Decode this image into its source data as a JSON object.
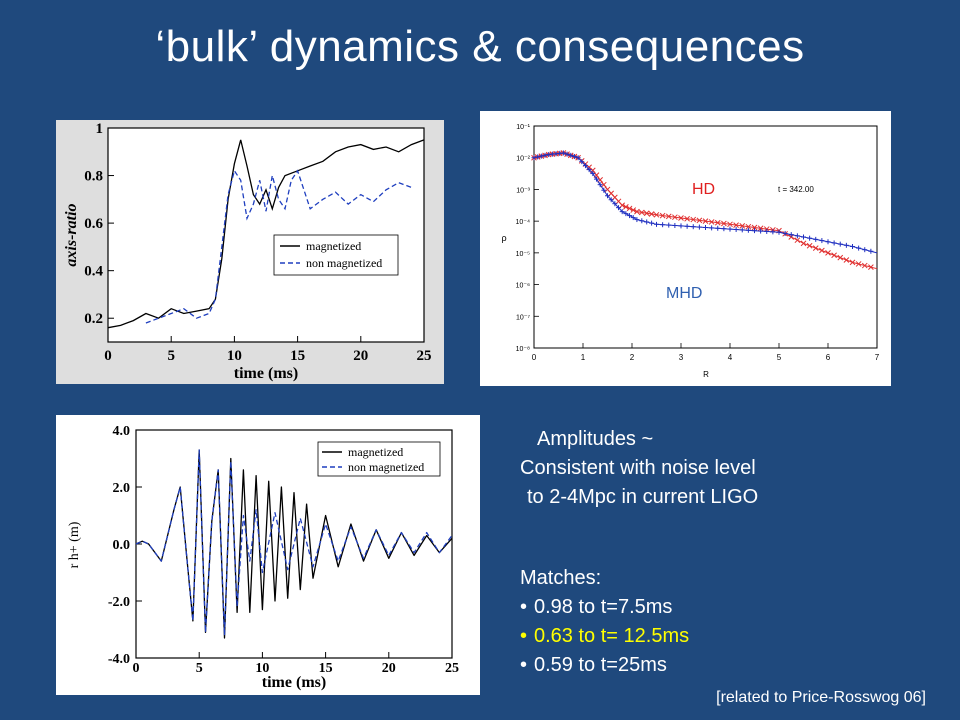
{
  "slide": {
    "title": "‘bulk’ dynamics & consequences"
  },
  "amplitudes": {
    "line1": "Amplitudes ~",
    "line2": "Consistent with noise level",
    "line3": "to  2-4Mpc in current LIGO"
  },
  "matches": {
    "heading": "Matches:",
    "items": [
      {
        "text": "0.98 to t=7.5ms",
        "highlight": false
      },
      {
        "text": "0.63 to t= 12.5ms",
        "highlight": true
      },
      {
        "text": "0.59 to t=25ms",
        "highlight": false
      }
    ]
  },
  "footer": {
    "note": "[related to Price-Rosswog 06]"
  },
  "chart_data": [
    {
      "type": "line",
      "xlabel": "time (ms)",
      "ylabel": "axis-ratio",
      "xlim": [
        0,
        25
      ],
      "ylim": [
        0.1,
        1.0
      ],
      "xticks": [
        "0",
        "5",
        "10",
        "15",
        "20",
        "25"
      ],
      "yticks": [
        "0.2",
        "0.4",
        "0.6",
        "0.8",
        "1"
      ],
      "legend_position": "lower-right",
      "series": [
        {
          "name": "magnetized",
          "style": "solid",
          "color": "#000000",
          "x": [
            0,
            1,
            2,
            3,
            4,
            5,
            6,
            7,
            8,
            8.5,
            9,
            9.5,
            10,
            10.5,
            11,
            11.5,
            12,
            12.5,
            13,
            13.5,
            14,
            15,
            16,
            17,
            18,
            19,
            20,
            21,
            22,
            23,
            24,
            25
          ],
          "y": [
            0.16,
            0.17,
            0.19,
            0.22,
            0.2,
            0.24,
            0.22,
            0.23,
            0.24,
            0.28,
            0.45,
            0.7,
            0.85,
            0.95,
            0.84,
            0.72,
            0.68,
            0.74,
            0.66,
            0.75,
            0.8,
            0.82,
            0.84,
            0.86,
            0.9,
            0.92,
            0.93,
            0.91,
            0.92,
            0.9,
            0.93,
            0.95
          ]
        },
        {
          "name": "non magnetized",
          "style": "dashed",
          "color": "#1f3fbf",
          "x": [
            3,
            4,
            5,
            6,
            7,
            8,
            8.5,
            9,
            9.5,
            10,
            10.5,
            11,
            11.5,
            12,
            12.5,
            13,
            13.5,
            14,
            14.5,
            15,
            16,
            17,
            18,
            19,
            20,
            21,
            22,
            23,
            24
          ],
          "y": [
            0.18,
            0.2,
            0.22,
            0.24,
            0.2,
            0.22,
            0.28,
            0.5,
            0.72,
            0.82,
            0.78,
            0.62,
            0.68,
            0.78,
            0.65,
            0.8,
            0.7,
            0.66,
            0.78,
            0.82,
            0.66,
            0.7,
            0.73,
            0.68,
            0.72,
            0.69,
            0.74,
            0.77,
            0.75
          ]
        }
      ]
    },
    {
      "type": "scatter",
      "xlabel": "R",
      "ylabel": "ρ",
      "xlim": [
        0,
        7
      ],
      "ylim_log10": [
        -8,
        -1
      ],
      "xticks": [
        "0",
        "1",
        "2",
        "3",
        "4",
        "5",
        "6",
        "7"
      ],
      "yticks": [
        "10⁻⁸",
        "10⁻⁷",
        "10⁻⁶",
        "10⁻⁵",
        "10⁻⁴",
        "10⁻³",
        "10⁻²",
        "10⁻¹"
      ],
      "annotation": "t =   342.00",
      "series": [
        {
          "name": "HD",
          "color": "#e03030",
          "x": [
            0,
            0.3,
            0.6,
            0.9,
            1.2,
            1.5,
            1.8,
            2.1,
            2.5,
            3.0,
            3.5,
            4.0,
            4.5,
            5.0,
            5.5,
            6.0,
            6.5,
            7.0
          ],
          "log10_y": [
            -2.0,
            -1.9,
            -1.85,
            -2.0,
            -2.4,
            -3.0,
            -3.5,
            -3.7,
            -3.8,
            -3.9,
            -4.0,
            -4.1,
            -4.2,
            -4.3,
            -4.7,
            -5.0,
            -5.3,
            -5.5
          ]
        },
        {
          "name": "MHD",
          "color": "#2030c0",
          "x": [
            0,
            0.3,
            0.6,
            0.9,
            1.2,
            1.5,
            1.8,
            2.1,
            2.5,
            3.0,
            3.5,
            4.0,
            4.5,
            5.0,
            5.5,
            6.0,
            6.5,
            7.0
          ],
          "log10_y": [
            -2.0,
            -1.9,
            -1.85,
            -2.0,
            -2.5,
            -3.2,
            -3.7,
            -3.95,
            -4.1,
            -4.15,
            -4.2,
            -4.25,
            -4.3,
            -4.35,
            -4.5,
            -4.65,
            -4.8,
            -5.0
          ]
        }
      ]
    },
    {
      "type": "line",
      "xlabel": "time (ms)",
      "ylabel": "r h+ (m)",
      "xlim": [
        0,
        25
      ],
      "ylim": [
        -4.0,
        4.0
      ],
      "xticks": [
        "0",
        "5",
        "10",
        "15",
        "20",
        "25"
      ],
      "yticks": [
        "-4.0",
        "-2.0",
        "0.0",
        "2.0",
        "4.0"
      ],
      "legend_position": "top-right",
      "series": [
        {
          "name": "magnetized",
          "style": "solid",
          "color": "#000000",
          "x": [
            0,
            0.5,
            1,
            2,
            3,
            3.5,
            4,
            4.5,
            5,
            5.5,
            6,
            6.5,
            7,
            7.5,
            8,
            8.5,
            9,
            9.5,
            10,
            10.5,
            11,
            11.5,
            12,
            12.5,
            13,
            13.5,
            14,
            15,
            16,
            17,
            18,
            19,
            20,
            21,
            22,
            23,
            24,
            25
          ],
          "y": [
            0,
            0.1,
            0,
            -0.6,
            1.2,
            2.0,
            -0.4,
            -2.7,
            3.3,
            -3.1,
            0.8,
            2.6,
            -3.3,
            3.0,
            -2.4,
            2.6,
            -2.4,
            2.4,
            -2.3,
            2.2,
            -2.0,
            2.0,
            -1.9,
            1.8,
            -1.6,
            1.4,
            -1.2,
            1.0,
            -0.8,
            0.7,
            -0.6,
            0.5,
            -0.5,
            0.4,
            -0.4,
            0.3,
            -0.3,
            0.2
          ]
        },
        {
          "name": "non magnetized",
          "style": "dashed",
          "color": "#1f3fbf",
          "x": [
            0,
            0.5,
            1,
            2,
            3,
            3.5,
            4,
            4.5,
            5,
            5.5,
            6,
            6.5,
            7,
            7.5,
            8,
            8.5,
            9,
            9.5,
            10,
            11,
            12,
            13,
            14,
            15,
            16,
            17,
            18,
            19,
            20,
            21,
            22,
            23,
            24,
            25
          ],
          "y": [
            0,
            0.1,
            0,
            -0.6,
            1.2,
            2.0,
            -0.4,
            -2.7,
            3.3,
            -3.1,
            0.8,
            2.6,
            -3.2,
            2.9,
            -2.2,
            1.0,
            -0.6,
            1.2,
            -1.0,
            1.1,
            -0.9,
            0.9,
            -0.8,
            0.7,
            -0.6,
            0.6,
            -0.5,
            0.5,
            -0.4,
            0.4,
            -0.3,
            0.4,
            -0.3,
            0.3
          ]
        }
      ]
    }
  ]
}
